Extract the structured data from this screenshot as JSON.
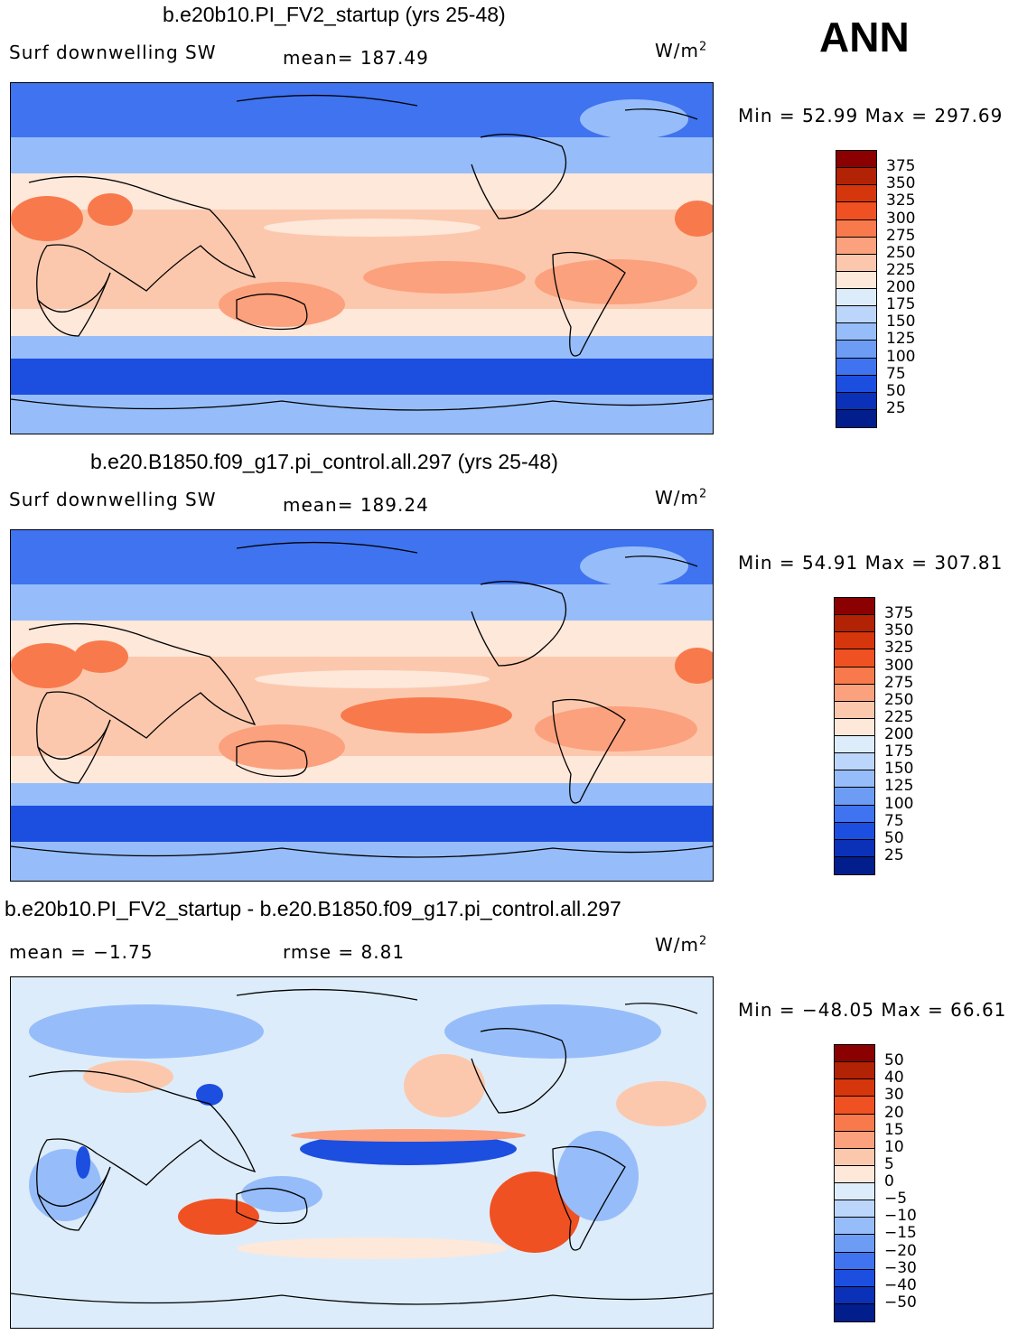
{
  "season": "ANN",
  "units_base": "W/m",
  "units_exp": "2",
  "panels": [
    {
      "title": "b.e20b10.PI_FV2_startup (yrs 25-48)",
      "left_label": "Surf  downwelling  SW",
      "stat1": "mean=  187.49",
      "stat2": "",
      "minmax_label": "Min  =     52.99  Max  =  297.69",
      "colorbar": {
        "labels": [
          "375",
          "350",
          "325",
          "300",
          "275",
          "250",
          "225",
          "200",
          "175",
          "150",
          "125",
          "100",
          "75",
          "50",
          "25"
        ],
        "colors": [
          "#8b0000",
          "#b22204",
          "#d6360c",
          "#f05122",
          "#f87a4c",
          "#fba17e",
          "#fcc8ad",
          "#fde8da",
          "#ddecfa",
          "#bcd6fb",
          "#96bdfa",
          "#6d9cf5",
          "#3f73ef",
          "#1c4ee0",
          "#0a31b8",
          "#011e8c"
        ]
      }
    },
    {
      "title": "b.e20.B1850.f09_g17.pi_control.all.297 (yrs 25-48)",
      "left_label": "Surf  downwelling  SW",
      "stat1": "mean=  189.24",
      "stat2": "",
      "minmax_label": "Min  =     54.91  Max  =  307.81",
      "colorbar": {
        "labels": [
          "375",
          "350",
          "325",
          "300",
          "275",
          "250",
          "225",
          "200",
          "175",
          "150",
          "125",
          "100",
          "75",
          "50",
          "25"
        ],
        "colors": [
          "#8b0000",
          "#b22204",
          "#d6360c",
          "#f05122",
          "#f87a4c",
          "#fba17e",
          "#fcc8ad",
          "#fde8da",
          "#ddecfa",
          "#bcd6fb",
          "#96bdfa",
          "#6d9cf5",
          "#3f73ef",
          "#1c4ee0",
          "#0a31b8",
          "#011e8c"
        ]
      }
    },
    {
      "title": "b.e20b10.PI_FV2_startup - b.e20.B1850.f09_g17.pi_control.all.297",
      "left_label": "mean  =    −1.75",
      "stat1": "rmse  =     8.81",
      "stat2": "",
      "minmax_label": "Min  =  −48.05  Max  =    66.61",
      "colorbar": {
        "labels": [
          "50",
          "40",
          "30",
          "20",
          "15",
          "10",
          "5",
          "0",
          "−5",
          "−10",
          "−15",
          "−20",
          "−30",
          "−40",
          "−50"
        ],
        "colors": [
          "#8b0000",
          "#b22204",
          "#d6360c",
          "#f05122",
          "#f87a4c",
          "#fba17e",
          "#fcc8ad",
          "#fde8da",
          "#ddecfa",
          "#bcd6fb",
          "#96bdfa",
          "#6d9cf5",
          "#3f73ef",
          "#1c4ee0",
          "#0a31b8",
          "#011e8c"
        ]
      }
    }
  ]
}
